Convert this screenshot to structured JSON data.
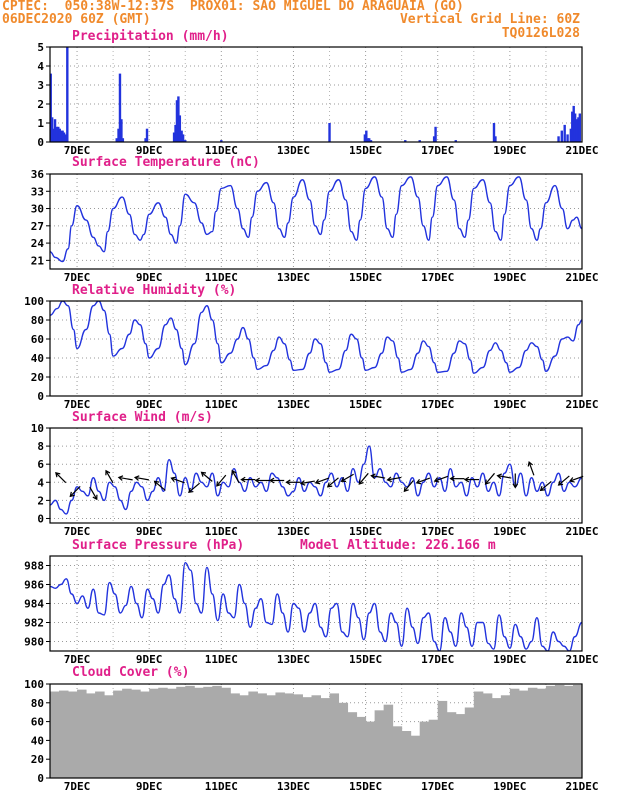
{
  "header": {
    "line1_left": "CPTEC:  050:38W-12:37S  PROX01: SAO MIGUEL DO ARAGUAIA (GO)",
    "line2_left": "06DEC2020 60Z (GMT)",
    "line2_right": "Vertical Grid Line: 60Z",
    "line3_right": "TQ0126L028"
  },
  "colors": {
    "header": "#f08a2c",
    "title": "#e0208a",
    "line": "#2233dd",
    "cloud": "#aaaaaa"
  },
  "chart_data": [
    {
      "type": "bar",
      "title": "Precipitation (mm/h)",
      "xlim": [
        6.25,
        21.0
      ],
      "ylim": [
        0,
        5
      ],
      "yticks": [
        0,
        1,
        2,
        3,
        4,
        5
      ],
      "xticks": [
        "7DEC",
        "9DEC",
        "11DEC",
        "13DEC",
        "15DEC",
        "17DEC",
        "19DEC",
        "21DEC"
      ],
      "x": [
        6.27,
        6.31,
        6.35,
        6.39,
        6.44,
        6.48,
        6.52,
        6.56,
        6.6,
        6.64,
        6.69,
        6.73,
        8.1,
        8.15,
        8.19,
        8.23,
        8.27,
        8.9,
        8.94,
        9.69,
        9.73,
        9.77,
        9.81,
        9.85,
        9.9,
        9.94,
        10.0,
        11.0,
        14.0,
        14.98,
        15.02,
        15.06,
        15.1,
        15.15,
        16.1,
        16.5,
        16.9,
        16.94,
        17.5,
        18.56,
        18.6,
        20.35,
        20.44,
        20.52,
        20.6,
        20.69,
        20.73,
        20.77,
        20.81,
        20.85,
        20.9,
        20.94
      ],
      "values": [
        3.6,
        1.3,
        0.7,
        1.2,
        0.8,
        0.8,
        0.7,
        0.6,
        0.6,
        0.5,
        0.4,
        5.0,
        0.2,
        0.7,
        3.6,
        1.2,
        0.2,
        0.2,
        0.7,
        0.5,
        0.9,
        2.2,
        2.4,
        1.4,
        0.6,
        0.4,
        0.1,
        0.1,
        1.0,
        0.4,
        0.6,
        0.2,
        0.2,
        0.1,
        0.1,
        0.1,
        0.3,
        0.8,
        0.1,
        1.0,
        0.3,
        0.3,
        0.6,
        0.9,
        0.4,
        0.7,
        1.6,
        1.9,
        1.5,
        1.2,
        1.3,
        1.5
      ]
    },
    {
      "type": "line",
      "title": "Surface Temperature (nC)",
      "xlim": [
        6.25,
        21.0
      ],
      "ylim": [
        19.5,
        36
      ],
      "yticks": [
        21,
        24,
        27,
        30,
        33,
        36
      ],
      "xticks": [
        "7DEC",
        "9DEC",
        "11DEC",
        "13DEC",
        "15DEC",
        "17DEC",
        "19DEC",
        "21DEC"
      ],
      "x": [
        6.25,
        6.4,
        6.6,
        6.75,
        6.85,
        7.0,
        7.25,
        7.45,
        7.6,
        7.75,
        7.85,
        8.0,
        8.25,
        8.45,
        8.6,
        8.75,
        8.85,
        9.0,
        9.25,
        9.45,
        9.6,
        9.75,
        9.85,
        10.0,
        10.25,
        10.45,
        10.6,
        10.75,
        10.85,
        11.0,
        11.25,
        11.45,
        11.6,
        11.75,
        11.85,
        12.0,
        12.25,
        12.45,
        12.6,
        12.75,
        12.85,
        13.0,
        13.25,
        13.45,
        13.6,
        13.75,
        13.85,
        14.0,
        14.25,
        14.45,
        14.6,
        14.75,
        14.85,
        15.0,
        15.25,
        15.45,
        15.6,
        15.75,
        15.85,
        16.0,
        16.25,
        16.45,
        16.6,
        16.75,
        16.85,
        17.0,
        17.25,
        17.45,
        17.6,
        17.75,
        17.85,
        18.0,
        18.25,
        18.45,
        18.6,
        18.75,
        18.85,
        19.0,
        19.25,
        19.45,
        19.6,
        19.75,
        19.85,
        20.0,
        20.25,
        20.45,
        20.6,
        20.75,
        20.85,
        21.0
      ],
      "values": [
        22.5,
        21.5,
        20.8,
        23.0,
        27.0,
        30.5,
        28.0,
        25.0,
        23.5,
        22.5,
        26.0,
        30.0,
        32.0,
        29.0,
        25.5,
        24.5,
        25.5,
        29.0,
        31.0,
        28.5,
        25.5,
        24.0,
        27.0,
        32.5,
        31.0,
        27.5,
        25.5,
        26.0,
        29.5,
        33.5,
        34.0,
        30.0,
        26.5,
        25.0,
        28.5,
        33.0,
        34.5,
        31.0,
        26.5,
        25.0,
        27.5,
        32.0,
        35.0,
        31.5,
        27.0,
        25.5,
        28.0,
        33.0,
        35.0,
        31.5,
        26.0,
        24.5,
        28.0,
        33.5,
        35.5,
        32.0,
        26.5,
        25.0,
        29.0,
        34.0,
        35.5,
        32.0,
        27.0,
        24.5,
        28.5,
        34.0,
        35.5,
        31.5,
        26.5,
        25.0,
        28.0,
        33.5,
        35.0,
        31.0,
        26.0,
        24.5,
        29.0,
        34.0,
        35.5,
        31.5,
        26.5,
        24.5,
        26.5,
        31.0,
        34.0,
        30.0,
        26.5,
        28.0,
        28.5,
        26.5
      ]
    },
    {
      "type": "line",
      "title": "Relative Humidity (%)",
      "xlim": [
        6.25,
        21.0
      ],
      "ylim": [
        0,
        100
      ],
      "yticks": [
        0,
        20,
        40,
        60,
        80,
        100
      ],
      "xticks": [
        "7DEC",
        "9DEC",
        "11DEC",
        "13DEC",
        "15DEC",
        "17DEC",
        "19DEC",
        "21DEC"
      ],
      "x": [
        6.25,
        6.45,
        6.6,
        6.75,
        6.9,
        7.0,
        7.25,
        7.45,
        7.6,
        7.75,
        7.9,
        8.0,
        8.25,
        8.45,
        8.6,
        8.75,
        8.9,
        9.0,
        9.25,
        9.45,
        9.6,
        9.75,
        9.9,
        10.0,
        10.25,
        10.45,
        10.6,
        10.75,
        10.9,
        11.0,
        11.25,
        11.45,
        11.6,
        11.75,
        11.9,
        12.0,
        12.25,
        12.45,
        12.6,
        12.75,
        12.9,
        13.0,
        13.25,
        13.45,
        13.6,
        13.75,
        13.9,
        14.0,
        14.25,
        14.45,
        14.6,
        14.75,
        14.9,
        15.0,
        15.25,
        15.45,
        15.6,
        15.75,
        15.9,
        16.0,
        16.25,
        16.45,
        16.6,
        16.75,
        16.9,
        17.0,
        17.25,
        17.45,
        17.6,
        17.75,
        17.9,
        18.0,
        18.25,
        18.45,
        18.6,
        18.75,
        18.9,
        19.0,
        19.25,
        19.45,
        19.6,
        19.75,
        19.9,
        20.0,
        20.25,
        20.45,
        20.6,
        20.75,
        20.9,
        21.0
      ],
      "values": [
        85,
        92,
        100,
        95,
        70,
        50,
        70,
        95,
        100,
        90,
        65,
        42,
        50,
        65,
        80,
        75,
        55,
        40,
        50,
        75,
        82,
        70,
        50,
        33,
        55,
        88,
        95,
        80,
        55,
        35,
        45,
        60,
        72,
        60,
        40,
        28,
        32,
        48,
        62,
        55,
        38,
        27,
        28,
        45,
        60,
        55,
        35,
        25,
        28,
        48,
        65,
        60,
        40,
        27,
        30,
        45,
        62,
        58,
        40,
        25,
        28,
        45,
        58,
        52,
        35,
        25,
        26,
        45,
        58,
        55,
        38,
        24,
        30,
        48,
        56,
        48,
        35,
        25,
        30,
        48,
        56,
        52,
        38,
        26,
        42,
        60,
        62,
        58,
        75,
        80
      ]
    },
    {
      "type": "line",
      "title": "Surface Wind (m/s)",
      "xlim": [
        6.25,
        21.0
      ],
      "ylim": [
        -0.5,
        10
      ],
      "yticks": [
        0,
        2,
        4,
        6,
        8,
        10
      ],
      "xticks": [
        "7DEC",
        "9DEC",
        "11DEC",
        "13DEC",
        "15DEC",
        "17DEC",
        "19DEC",
        "21DEC"
      ],
      "x": [
        6.25,
        6.4,
        6.55,
        6.7,
        6.85,
        7.0,
        7.15,
        7.3,
        7.45,
        7.6,
        7.75,
        7.9,
        8.05,
        8.2,
        8.35,
        8.5,
        8.65,
        8.8,
        8.95,
        9.1,
        9.25,
        9.4,
        9.55,
        9.7,
        9.85,
        10.0,
        10.15,
        10.3,
        10.45,
        10.6,
        10.75,
        10.9,
        11.05,
        11.2,
        11.35,
        11.5,
        11.65,
        11.8,
        11.95,
        12.1,
        12.25,
        12.4,
        12.55,
        12.7,
        12.85,
        13.0,
        13.15,
        13.3,
        13.45,
        13.6,
        13.75,
        13.9,
        14.05,
        14.2,
        14.35,
        14.5,
        14.65,
        14.8,
        14.95,
        15.1,
        15.25,
        15.4,
        15.55,
        15.7,
        15.85,
        16.0,
        16.15,
        16.3,
        16.45,
        16.6,
        16.75,
        16.9,
        17.05,
        17.2,
        17.35,
        17.5,
        17.65,
        17.8,
        17.95,
        18.1,
        18.25,
        18.4,
        18.55,
        18.7,
        18.85,
        19.0,
        19.15,
        19.3,
        19.45,
        19.6,
        19.75,
        19.9,
        20.05,
        20.2,
        20.35,
        20.5,
        20.65,
        20.8,
        21.0
      ],
      "values": [
        1.5,
        2.0,
        1.0,
        0.5,
        2.0,
        3.5,
        3.0,
        2.5,
        4.5,
        3.0,
        2.0,
        4.0,
        3.5,
        2.0,
        1.0,
        3.0,
        4.0,
        3.5,
        2.0,
        3.0,
        4.5,
        3.0,
        6.5,
        5.0,
        2.5,
        4.5,
        3.0,
        5.0,
        4.0,
        3.5,
        5.0,
        2.5,
        4.0,
        3.5,
        5.5,
        4.0,
        3.0,
        4.5,
        3.5,
        4.0,
        3.0,
        5.0,
        4.5,
        3.5,
        2.5,
        3.0,
        4.5,
        3.0,
        4.0,
        3.5,
        2.5,
        4.0,
        5.0,
        3.5,
        4.5,
        3.0,
        5.5,
        4.0,
        6.0,
        8.0,
        4.5,
        5.5,
        4.0,
        3.5,
        5.0,
        4.0,
        3.5,
        4.5,
        2.5,
        4.0,
        5.0,
        3.5,
        4.5,
        3.0,
        5.5,
        3.5,
        4.0,
        2.5,
        4.5,
        3.5,
        5.0,
        3.0,
        4.0,
        2.5,
        5.0,
        6.0,
        3.5,
        5.0,
        2.5,
        4.5,
        3.0,
        4.0,
        2.5,
        4.0,
        5.0,
        3.0,
        4.0,
        3.5,
        4.5
      ],
      "arrows": [
        {
          "x": 6.55,
          "y": 4.5,
          "dir": 135
        },
        {
          "x": 6.95,
          "y": 3.0,
          "dir": 225
        },
        {
          "x": 7.45,
          "y": 2.8,
          "dir": 300
        },
        {
          "x": 7.9,
          "y": 4.6,
          "dir": 120
        },
        {
          "x": 8.35,
          "y": 4.4,
          "dir": 170
        },
        {
          "x": 8.8,
          "y": 4.4,
          "dir": 170
        },
        {
          "x": 9.3,
          "y": 3.6,
          "dir": 140
        },
        {
          "x": 9.8,
          "y": 4.2,
          "dir": 160
        },
        {
          "x": 10.25,
          "y": 3.4,
          "dir": 220
        },
        {
          "x": 10.6,
          "y": 4.6,
          "dir": 140
        },
        {
          "x": 11.0,
          "y": 4.2,
          "dir": 230
        },
        {
          "x": 11.4,
          "y": 4.6,
          "dir": 120
        },
        {
          "x": 11.75,
          "y": 4.3,
          "dir": 180
        },
        {
          "x": 12.15,
          "y": 4.2,
          "dir": 180
        },
        {
          "x": 12.55,
          "y": 4.2,
          "dir": 180
        },
        {
          "x": 13.0,
          "y": 4.0,
          "dir": 180
        },
        {
          "x": 13.4,
          "y": 4.0,
          "dir": 190
        },
        {
          "x": 13.8,
          "y": 4.2,
          "dir": 200
        },
        {
          "x": 14.1,
          "y": 4.0,
          "dir": 220
        },
        {
          "x": 14.5,
          "y": 4.5,
          "dir": 210
        },
        {
          "x": 14.95,
          "y": 4.4,
          "dir": 230
        },
        {
          "x": 15.35,
          "y": 4.6,
          "dir": 170
        },
        {
          "x": 15.8,
          "y": 4.4,
          "dir": 190
        },
        {
          "x": 16.2,
          "y": 3.6,
          "dir": 230
        },
        {
          "x": 16.6,
          "y": 4.2,
          "dir": 200
        },
        {
          "x": 17.1,
          "y": 4.4,
          "dir": 200
        },
        {
          "x": 17.55,
          "y": 4.4,
          "dir": 180
        },
        {
          "x": 17.95,
          "y": 4.3,
          "dir": 180
        },
        {
          "x": 18.45,
          "y": 4.4,
          "dir": 230
        },
        {
          "x": 18.85,
          "y": 4.6,
          "dir": 170
        },
        {
          "x": 19.15,
          "y": 4.2,
          "dir": 270
        },
        {
          "x": 19.6,
          "y": 5.5,
          "dir": 110
        },
        {
          "x": 20.0,
          "y": 3.6,
          "dir": 220
        },
        {
          "x": 20.5,
          "y": 4.2,
          "dir": 220
        },
        {
          "x": 20.85,
          "y": 4.4,
          "dir": 200
        }
      ]
    },
    {
      "type": "line",
      "title": "Surface Pressure (hPa)",
      "annotation": "Model Altitude: 226.166 m",
      "xlim": [
        6.25,
        21.0
      ],
      "ylim": [
        979,
        989
      ],
      "yticks": [
        980,
        982,
        984,
        986,
        988
      ],
      "xticks": [
        "7DEC",
        "9DEC",
        "11DEC",
        "13DEC",
        "15DEC",
        "17DEC",
        "19DEC",
        "21DEC"
      ],
      "x": [
        6.25,
        6.4,
        6.55,
        6.7,
        6.85,
        7.0,
        7.15,
        7.3,
        7.45,
        7.6,
        7.75,
        7.9,
        8.05,
        8.2,
        8.35,
        8.5,
        8.65,
        8.8,
        8.95,
        9.1,
        9.25,
        9.4,
        9.55,
        9.7,
        9.85,
        10.0,
        10.15,
        10.3,
        10.45,
        10.6,
        10.75,
        10.9,
        11.05,
        11.2,
        11.35,
        11.5,
        11.65,
        11.8,
        11.95,
        12.1,
        12.25,
        12.4,
        12.55,
        12.7,
        12.85,
        13.0,
        13.15,
        13.3,
        13.45,
        13.6,
        13.75,
        13.9,
        14.05,
        14.2,
        14.35,
        14.5,
        14.65,
        14.8,
        14.95,
        15.1,
        15.25,
        15.4,
        15.55,
        15.7,
        15.85,
        16.0,
        16.15,
        16.3,
        16.45,
        16.6,
        16.75,
        16.9,
        17.05,
        17.2,
        17.35,
        17.5,
        17.65,
        17.8,
        17.95,
        18.1,
        18.25,
        18.4,
        18.55,
        18.7,
        18.85,
        19.0,
        19.15,
        19.3,
        19.45,
        19.6,
        19.75,
        19.9,
        20.05,
        20.2,
        20.35,
        20.5,
        20.65,
        20.8,
        21.0
      ],
      "values": [
        985.8,
        985.6,
        986.0,
        986.6,
        985.0,
        984.0,
        984.8,
        983.5,
        985.5,
        983.0,
        982.8,
        986.2,
        985.0,
        983.0,
        983.8,
        985.8,
        984.0,
        982.5,
        985.5,
        984.5,
        983.0,
        986.0,
        987.0,
        984.5,
        983.0,
        988.3,
        987.5,
        984.0,
        983.0,
        987.8,
        985.0,
        982.2,
        985.0,
        983.0,
        982.5,
        986.0,
        984.0,
        981.5,
        983.5,
        984.5,
        982.0,
        981.8,
        985.0,
        983.0,
        981.0,
        984.0,
        983.5,
        981.0,
        983.0,
        984.0,
        981.5,
        980.5,
        983.5,
        984.0,
        981.0,
        980.5,
        984.0,
        982.5,
        980.2,
        983.0,
        984.0,
        981.0,
        980.0,
        983.0,
        982.0,
        979.5,
        983.5,
        981.5,
        979.8,
        982.5,
        983.0,
        980.0,
        979.0,
        982.5,
        981.0,
        979.5,
        983.0,
        981.5,
        979.5,
        982.0,
        982.0,
        979.8,
        979.2,
        982.8,
        980.5,
        979.3,
        981.8,
        980.5,
        979.2,
        980.0,
        982.5,
        979.5,
        979.0,
        981.0,
        980.0,
        979.5,
        979.0,
        980.5,
        982.0
      ]
    },
    {
      "type": "bar",
      "title": "Cloud Cover (%)",
      "xlim": [
        6.25,
        21.0
      ],
      "ylim": [
        0,
        100
      ],
      "yticks": [
        0,
        20,
        40,
        60,
        80,
        100
      ],
      "xticks": [
        "7DEC",
        "9DEC",
        "11DEC",
        "13DEC",
        "15DEC",
        "17DEC",
        "19DEC",
        "21DEC"
      ],
      "x": [
        6.25,
        6.5,
        6.75,
        7.0,
        7.25,
        7.5,
        7.75,
        8.0,
        8.25,
        8.5,
        8.75,
        9.0,
        9.25,
        9.5,
        9.75,
        10.0,
        10.25,
        10.5,
        10.75,
        11.0,
        11.25,
        11.5,
        11.75,
        12.0,
        12.25,
        12.5,
        12.75,
        13.0,
        13.25,
        13.5,
        13.75,
        14.0,
        14.25,
        14.5,
        14.75,
        15.0,
        15.25,
        15.5,
        15.75,
        16.0,
        16.25,
        16.5,
        16.75,
        17.0,
        17.25,
        17.5,
        17.75,
        18.0,
        18.25,
        18.5,
        18.75,
        19.0,
        19.25,
        19.5,
        19.75,
        20.0,
        20.25,
        20.5,
        20.75
      ],
      "values": [
        92,
        93,
        92,
        94,
        90,
        92,
        88,
        93,
        95,
        94,
        92,
        95,
        96,
        95,
        97,
        98,
        96,
        97,
        98,
        96,
        90,
        88,
        92,
        90,
        88,
        91,
        90,
        89,
        86,
        88,
        85,
        90,
        80,
        70,
        65,
        60,
        72,
        78,
        55,
        50,
        45,
        60,
        62,
        82,
        70,
        68,
        75,
        92,
        90,
        85,
        88,
        95,
        93,
        96,
        95,
        98,
        99,
        98,
        99
      ]
    }
  ]
}
